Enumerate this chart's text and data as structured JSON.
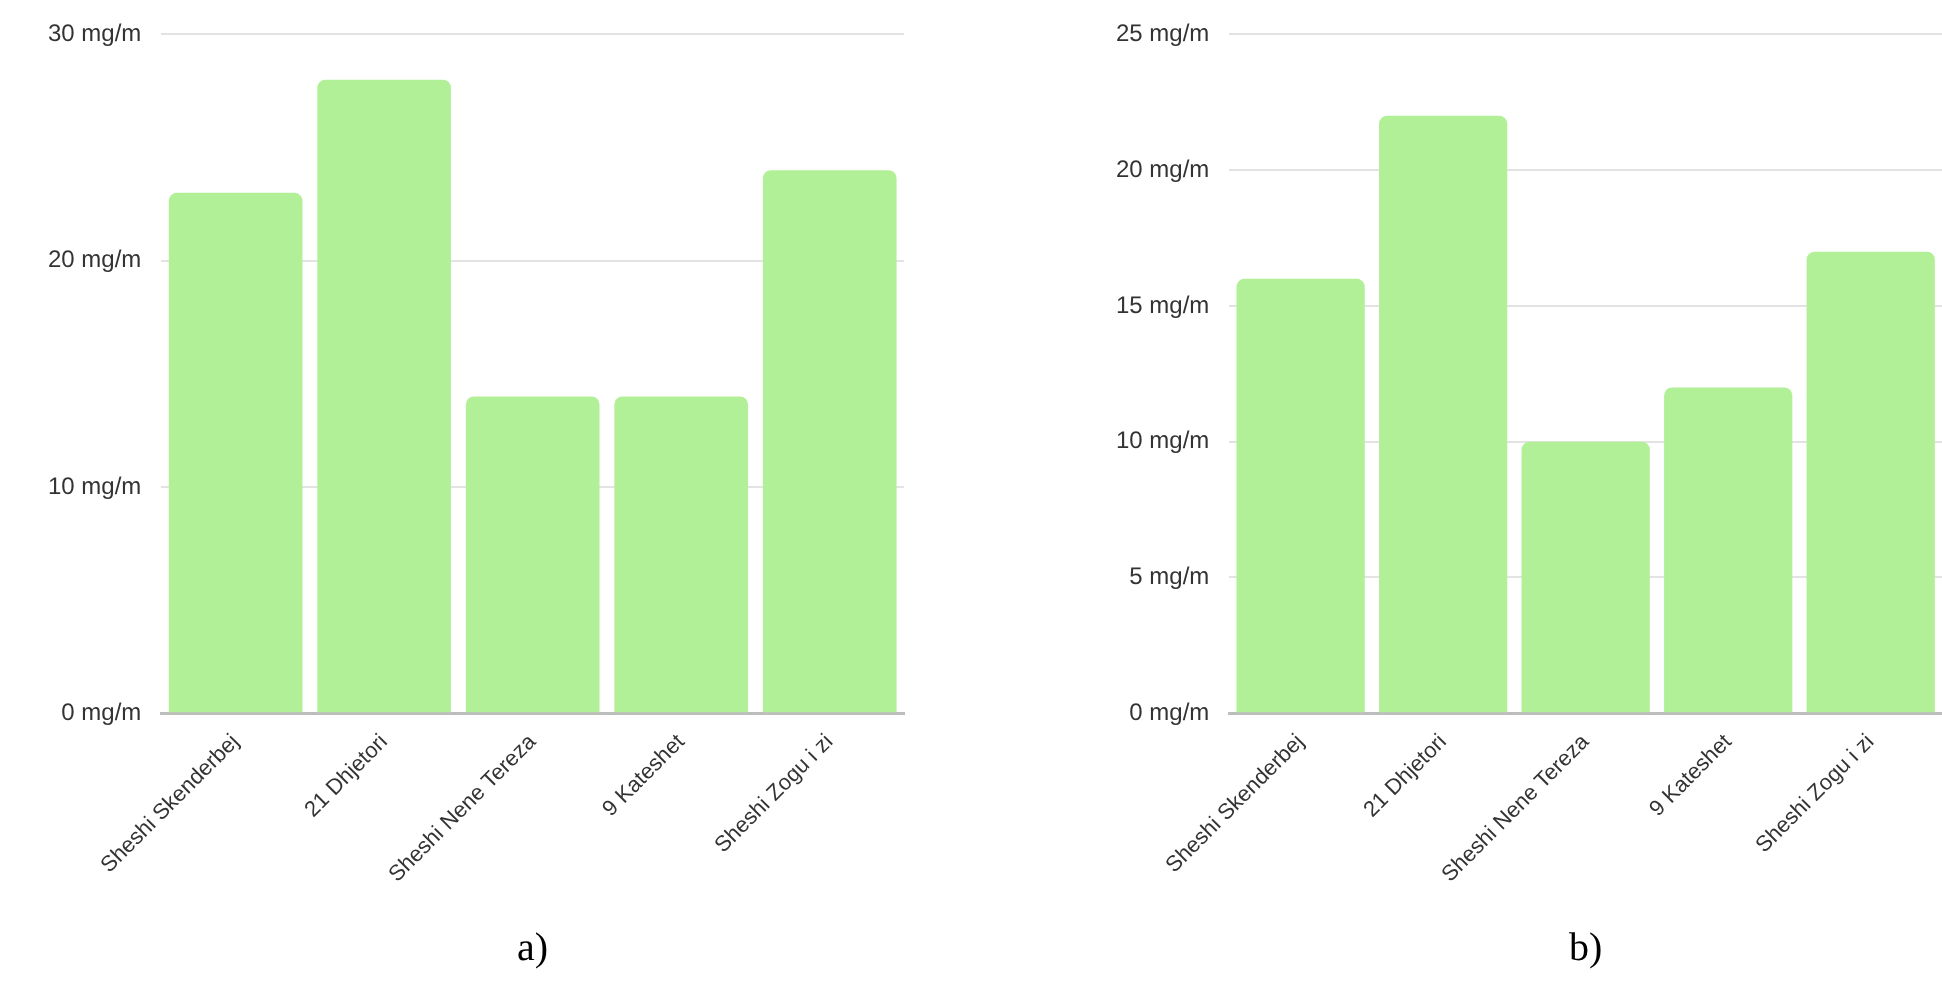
{
  "chart_data": [
    {
      "type": "bar",
      "categories": [
        "Sheshi Skenderbej",
        "21 Dhjetori",
        "Sheshi Nene Tereza",
        "9 Kateshet",
        "Sheshi Zogu i zi"
      ],
      "values": [
        23,
        28,
        14,
        14,
        24
      ],
      "color": "#b2f098",
      "ylim": [
        0,
        30
      ],
      "yticks": [
        {
          "value": 0,
          "label": "0 mg/m"
        },
        {
          "value": 10,
          "label": "10 mg/m"
        },
        {
          "value": 20,
          "label": "20 mg/m"
        },
        {
          "value": 30,
          "label": "30 mg/m"
        }
      ],
      "grid": "y",
      "annotations": [
        "a)"
      ]
    },
    {
      "type": "bar",
      "categories": [
        "Sheshi Skenderbej",
        "21 Dhjetori",
        "Sheshi Nene Tereza",
        "9 Kateshet",
        "Sheshi Zogu i zi"
      ],
      "values": [
        16,
        22,
        10,
        12,
        17
      ],
      "color": "#b2f098",
      "ylim": [
        0,
        25
      ],
      "yticks": [
        {
          "value": 0,
          "label": "0 mg/m"
        },
        {
          "value": 5,
          "label": "5 mg/m"
        },
        {
          "value": 10,
          "label": "10 mg/m"
        },
        {
          "value": 15,
          "label": "15 mg/m"
        },
        {
          "value": 20,
          "label": "20 mg/m"
        },
        {
          "value": 25,
          "label": "25 mg/m"
        }
      ],
      "grid": "y",
      "annotations": [
        "b)"
      ]
    }
  ]
}
